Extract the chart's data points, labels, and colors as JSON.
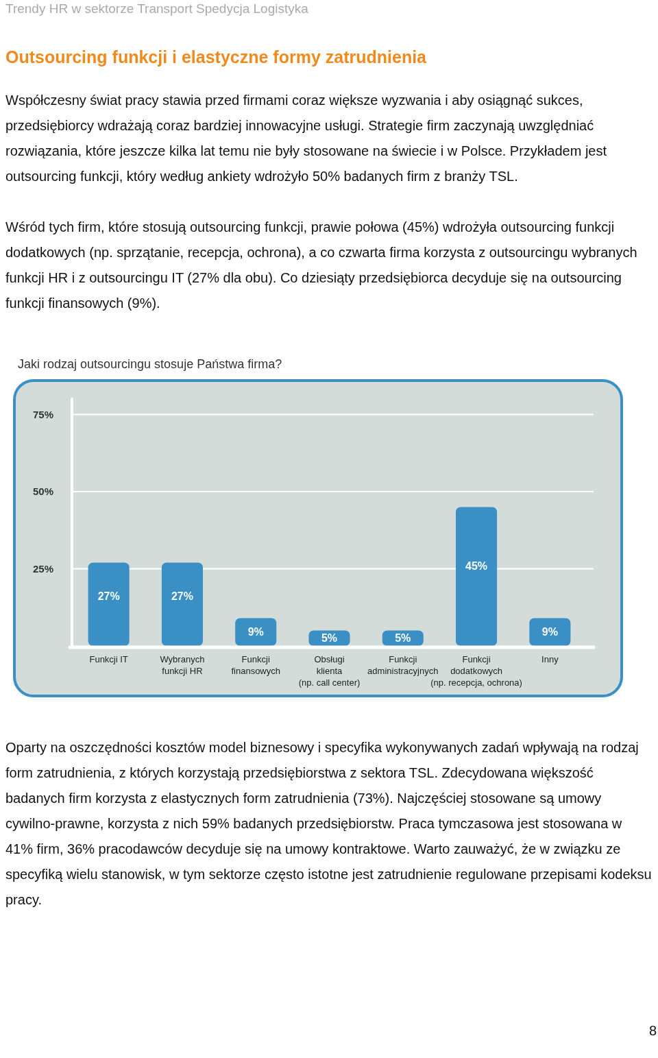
{
  "chart_data": {
    "type": "bar",
    "title": "Jaki rodzaj outsourcingu stosuje Państwa firma?",
    "annotations": [
      "Trendy HR w sektorze Transport Spedycja Logistyka",
      "Outsourcing funkcji i elastyczne formy zatrudnienia",
      "Współczesny świat pracy stawia przed firmami coraz większe wyzwania i aby osiągnąć sukces, przedsiębiorcy wdrażają coraz bardziej innowacyjne usługi. Strategie firm zaczynają uwzględniać rozwiązania, które jeszcze kilka lat temu nie były stosowane na świecie i w Polsce. Przykładem jest outsourcing funkcji, który według ankiety wdrożyło 50% badanych firm z branży TSL.",
      "Wśród tych firm, które stosują outsourcing funkcji, prawie połowa (45%) wdrożyła outsourcing funkcji dodatkowych (np. sprzątanie, recepcja, ochrona), a co czwarta firma korzysta z outsourcingu wybranych funkcji HR i z outsourcingu IT (27% dla obu). Co dziesiąty przedsiębiorca decyduje się na outsourcing funkcji finansowych (9%).",
      "Oparty na oszczędności kosztów model biznesowy i specyfika wykonywanych zadań wpływają na rodzaj form zatrudnienia, z których korzystają przedsiębiorstwa z sektora TSL. Zdecydowana większość badanych firm korzysta z elastycznych form zatrudnienia (73%). Najczęściej stosowane są umowy cywilno-prawne, korzysta z nich 59% badanych przedsiębiorstw. Praca tymczasowa jest stosowana w 41% firm, 36% pracodawców decyduje się na umowy kontraktowe. Warto zauważyć, że w związku ze specyfiką wielu stanowisk, w tym sektorze często istotne jest zatrudnienie regulowane przepisami kodeksu pracy.",
      "8"
    ],
    "categories": [
      "Funkcji IT",
      "Wybranych funkcji HR",
      "Funkcji finansowych",
      "Obsługi klienta (np. call center)",
      "Funkcji administracyjnych",
      "Funkcji dodatkowych (np. recepcja, ochrona)",
      "Inny"
    ],
    "values": [
      27,
      27,
      9,
      5,
      5,
      45,
      9
    ],
    "value_labels": [
      "27%",
      "27%",
      "9%",
      "5%",
      "5%",
      "45%",
      "9%"
    ],
    "color": "#3a8fc4",
    "ylim": [
      0,
      80
    ],
    "yticks": [
      {
        "value": 25,
        "label": "25%"
      },
      {
        "value": 50,
        "label": "50%"
      },
      {
        "value": 75,
        "label": "75%"
      }
    ],
    "grid": "y"
  }
}
